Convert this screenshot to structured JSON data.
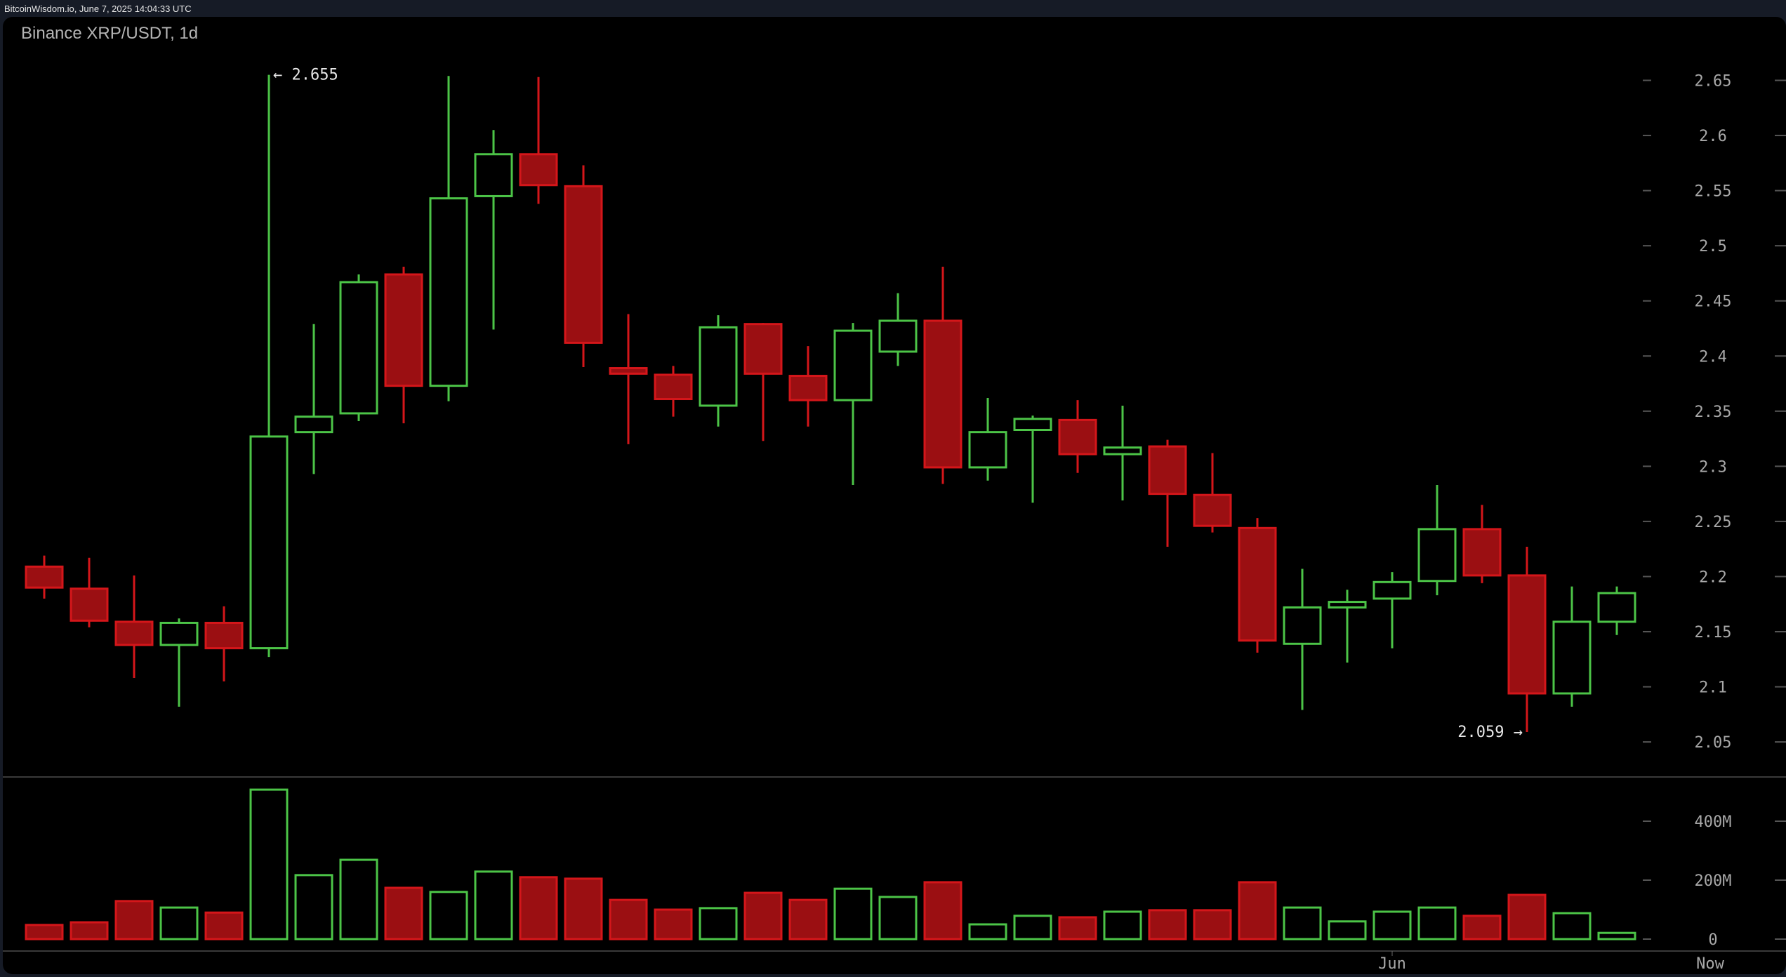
{
  "header": {
    "source_line": "BitcoinWisdom.io, June 7, 2025 14:04:33 UTC",
    "chart_title": "Binance XRP/USDT, 1d"
  },
  "colors": {
    "up": "#4cc447",
    "down": "#d4161a",
    "down_fill": "#9b0f12",
    "background": "#000000",
    "frame": "#161b26",
    "axis_text": "#a8a8a8",
    "divider": "#3a3a3a"
  },
  "annotations": {
    "high_label": "← 2.655",
    "low_label": "2.059 →"
  },
  "x_axis": {
    "labels": [
      {
        "text": "Jun",
        "candle_index": 30
      },
      {
        "text": "Now",
        "x": 2436
      }
    ]
  },
  "price_axis": {
    "ticks": [
      "2.65",
      "2.6",
      "2.55",
      "2.5",
      "2.45",
      "2.4",
      "2.35",
      "2.3",
      "2.25",
      "2.2",
      "2.15",
      "2.1",
      "2.05"
    ]
  },
  "volume_axis": {
    "ticks": [
      "400M",
      "200M",
      "0"
    ]
  },
  "chart_data": {
    "type": "candlestick",
    "title": "Binance XRP/USDT, 1d",
    "xlabel": "",
    "ylabel": "Price (USDT)",
    "ylim": [
      2.03,
      2.68
    ],
    "grid": false,
    "interval": "1d",
    "annotations": [
      {
        "text": "2.655",
        "type": "max_high",
        "candle_index": 5
      },
      {
        "text": "2.059",
        "type": "min_low",
        "candle_index": 33
      }
    ],
    "x_tick_labels": [
      "Jun",
      "Now"
    ],
    "y_tick_labels": [
      "2.05",
      "2.1",
      "2.15",
      "2.2",
      "2.25",
      "2.3",
      "2.35",
      "2.4",
      "2.45",
      "2.5",
      "2.55",
      "2.6",
      "2.65"
    ],
    "volume_tick_labels": [
      "0",
      "200M",
      "400M"
    ],
    "candles": [
      {
        "o": 2.209,
        "h": 2.219,
        "l": 2.18,
        "c": 2.19,
        "v": 48
      },
      {
        "o": 2.189,
        "h": 2.217,
        "l": 2.154,
        "c": 2.16,
        "v": 57
      },
      {
        "o": 2.159,
        "h": 2.201,
        "l": 2.108,
        "c": 2.138,
        "v": 129
      },
      {
        "o": 2.138,
        "h": 2.162,
        "l": 2.082,
        "c": 2.158,
        "v": 107
      },
      {
        "o": 2.158,
        "h": 2.173,
        "l": 2.105,
        "c": 2.135,
        "v": 90
      },
      {
        "o": 2.135,
        "h": 2.655,
        "l": 2.127,
        "c": 2.327,
        "v": 507
      },
      {
        "o": 2.331,
        "h": 2.429,
        "l": 2.293,
        "c": 2.345,
        "v": 217
      },
      {
        "o": 2.348,
        "h": 2.474,
        "l": 2.341,
        "c": 2.467,
        "v": 269
      },
      {
        "o": 2.474,
        "h": 2.481,
        "l": 2.339,
        "c": 2.373,
        "v": 174
      },
      {
        "o": 2.373,
        "h": 2.654,
        "l": 2.359,
        "c": 2.543,
        "v": 160
      },
      {
        "o": 2.545,
        "h": 2.605,
        "l": 2.424,
        "c": 2.583,
        "v": 229
      },
      {
        "o": 2.583,
        "h": 2.653,
        "l": 2.538,
        "c": 2.555,
        "v": 210
      },
      {
        "o": 2.554,
        "h": 2.573,
        "l": 2.39,
        "c": 2.412,
        "v": 205
      },
      {
        "o": 2.389,
        "h": 2.438,
        "l": 2.32,
        "c": 2.384,
        "v": 133
      },
      {
        "o": 2.383,
        "h": 2.391,
        "l": 2.345,
        "c": 2.361,
        "v": 100
      },
      {
        "o": 2.355,
        "h": 2.437,
        "l": 2.336,
        "c": 2.426,
        "v": 105
      },
      {
        "o": 2.429,
        "h": 2.43,
        "l": 2.323,
        "c": 2.384,
        "v": 157
      },
      {
        "o": 2.382,
        "h": 2.409,
        "l": 2.336,
        "c": 2.36,
        "v": 133
      },
      {
        "o": 2.36,
        "h": 2.43,
        "l": 2.283,
        "c": 2.423,
        "v": 171
      },
      {
        "o": 2.404,
        "h": 2.457,
        "l": 2.391,
        "c": 2.432,
        "v": 143
      },
      {
        "o": 2.432,
        "h": 2.481,
        "l": 2.284,
        "c": 2.299,
        "v": 193
      },
      {
        "o": 2.299,
        "h": 2.362,
        "l": 2.287,
        "c": 2.331,
        "v": 50
      },
      {
        "o": 2.333,
        "h": 2.346,
        "l": 2.267,
        "c": 2.343,
        "v": 79
      },
      {
        "o": 2.342,
        "h": 2.36,
        "l": 2.294,
        "c": 2.311,
        "v": 74
      },
      {
        "o": 2.311,
        "h": 2.355,
        "l": 2.269,
        "c": 2.317,
        "v": 93
      },
      {
        "o": 2.318,
        "h": 2.324,
        "l": 2.227,
        "c": 2.275,
        "v": 98
      },
      {
        "o": 2.274,
        "h": 2.312,
        "l": 2.24,
        "c": 2.246,
        "v": 98
      },
      {
        "o": 2.244,
        "h": 2.253,
        "l": 2.131,
        "c": 2.142,
        "v": 193
      },
      {
        "o": 2.139,
        "h": 2.207,
        "l": 2.079,
        "c": 2.172,
        "v": 107
      },
      {
        "o": 2.172,
        "h": 2.188,
        "l": 2.122,
        "c": 2.177,
        "v": 60
      },
      {
        "o": 2.18,
        "h": 2.204,
        "l": 2.135,
        "c": 2.195,
        "v": 93
      },
      {
        "o": 2.196,
        "h": 2.283,
        "l": 2.183,
        "c": 2.243,
        "v": 107
      },
      {
        "o": 2.243,
        "h": 2.265,
        "l": 2.194,
        "c": 2.201,
        "v": 79
      },
      {
        "o": 2.201,
        "h": 2.227,
        "l": 2.059,
        "c": 2.094,
        "v": 150
      },
      {
        "o": 2.094,
        "h": 2.191,
        "l": 2.082,
        "c": 2.159,
        "v": 88
      },
      {
        "o": 2.159,
        "h": 2.191,
        "l": 2.147,
        "c": 2.185,
        "v": 21
      }
    ],
    "volume_unit": "M"
  }
}
